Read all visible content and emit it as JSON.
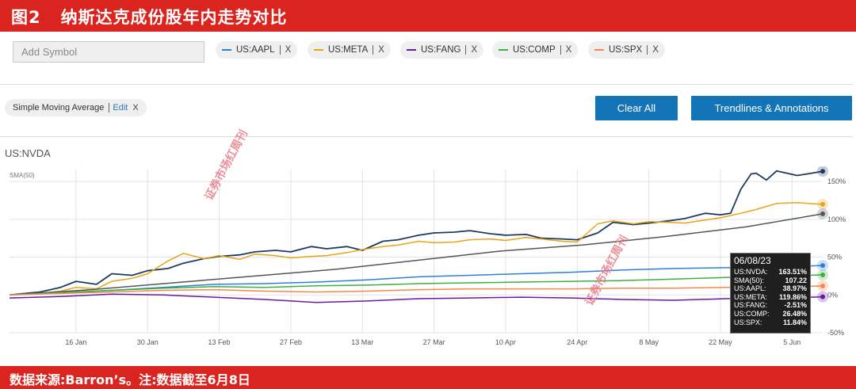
{
  "header": {
    "figure_no": "图2",
    "title": "纳斯达克成份股年内走势对比"
  },
  "footer": {
    "text": "数据来源:Barron’s。注:数据截至6月8日"
  },
  "toolbar": {
    "add_symbol_placeholder": "Add Symbol",
    "chips": [
      {
        "label": "US:AAPL",
        "color": "#2f7ed8",
        "close": "X"
      },
      {
        "label": "US:META",
        "color": "#e8a317",
        "close": "X"
      },
      {
        "label": "US:FANG",
        "color": "#6a1aa0",
        "close": "X"
      },
      {
        "label": "US:COMP",
        "color": "#3cb043",
        "close": "X"
      },
      {
        "label": "US:SPX",
        "color": "#f3894a",
        "close": "X"
      }
    ],
    "indicator": {
      "label": "Simple Moving Average",
      "edit": "Edit",
      "close": "X"
    },
    "clear_all": "Clear All",
    "trendlines": "Trendlines & Annotations"
  },
  "symbol_title": "US:NVDA",
  "watermark": "证券市场红周刊",
  "tooltip": {
    "date": "06/08/23",
    "rows": [
      {
        "name": "US:NVDA:",
        "value": "163.51%"
      },
      {
        "name": "SMA(50):",
        "value": "107.22"
      },
      {
        "name": "US:AAPL:",
        "value": "38.97%"
      },
      {
        "name": "US:META:",
        "value": "119.86%"
      },
      {
        "name": "US:FANG:",
        "value": "-2.51%"
      },
      {
        "name": "US:COMP:",
        "value": "26.48%"
      },
      {
        "name": "US:SPX:",
        "value": "11.84%"
      }
    ]
  },
  "chart_data": {
    "type": "line",
    "title": "",
    "ylabel": "",
    "y_unit": "%",
    "sma_label": "SMA(50)",
    "ylim": [
      -50,
      170
    ],
    "y_ticks": [
      150,
      100,
      50,
      0,
      -50
    ],
    "y_tick_labels": [
      "150%",
      "100%",
      "50%",
      "0%",
      "-50%"
    ],
    "x_tick_labels": [
      "16 Jan",
      "30 Jan",
      "13 Feb",
      "27 Feb",
      "13 Mar",
      "27 Mar",
      "10 Apr",
      "24 Apr",
      "8 May",
      "22 May",
      "5 Jun"
    ],
    "x_tick_days": [
      13,
      27,
      41,
      55,
      69,
      83,
      97,
      111,
      125,
      139,
      153
    ],
    "x_range_days": [
      0,
      159
    ],
    "grid": true,
    "series": [
      {
        "name": "US:NVDA",
        "color": "#1f3a5f",
        "x": [
          0,
          6,
          10,
          13,
          17,
          20,
          24,
          27,
          31,
          34,
          38,
          41,
          45,
          48,
          52,
          55,
          59,
          62,
          66,
          69,
          73,
          76,
          80,
          83,
          87,
          90,
          94,
          97,
          101,
          104,
          108,
          111,
          115,
          118,
          122,
          125,
          129,
          132,
          136,
          139,
          141,
          143,
          145,
          146,
          148,
          150,
          152,
          154,
          156,
          159
        ],
        "values": [
          0,
          4,
          10,
          18,
          14,
          28,
          26,
          32,
          35,
          42,
          48,
          51,
          53,
          57,
          59,
          57,
          64,
          61,
          64,
          59,
          71,
          73,
          79,
          82,
          83,
          85,
          81,
          79,
          80,
          75,
          74,
          73,
          82,
          96,
          93,
          95,
          98,
          101,
          108,
          106,
          108,
          140,
          160,
          161,
          152,
          164,
          161,
          158,
          160,
          163.51
        ]
      },
      {
        "name": "US:META",
        "color": "#e8a317",
        "x": [
          0,
          6,
          10,
          13,
          17,
          20,
          24,
          27,
          31,
          34,
          38,
          41,
          45,
          48,
          52,
          55,
          59,
          62,
          66,
          69,
          73,
          76,
          80,
          83,
          87,
          90,
          94,
          97,
          101,
          104,
          108,
          111,
          115,
          118,
          122,
          125,
          129,
          132,
          136,
          139,
          143,
          146,
          150,
          154,
          159
        ],
        "values": [
          0,
          2,
          5,
          10,
          8,
          18,
          22,
          28,
          45,
          55,
          48,
          52,
          47,
          54,
          52,
          49,
          51,
          52,
          56,
          60,
          64,
          66,
          71,
          69,
          70,
          73,
          74,
          72,
          76,
          74,
          71,
          70,
          94,
          98,
          94,
          97,
          96,
          95,
          99,
          102,
          108,
          113,
          121,
          122,
          119.86
        ]
      },
      {
        "name": "SMA(50)",
        "color": "#555555",
        "x": [
          0,
          16,
          32,
          48,
          64,
          80,
          96,
          112,
          128,
          144,
          159
        ],
        "values": [
          0,
          7,
          16,
          25,
          34,
          46,
          58,
          66,
          77,
          90,
          107.22
        ]
      },
      {
        "name": "US:AAPL",
        "color": "#2f7ed8",
        "x": [
          0,
          10,
          20,
          30,
          40,
          50,
          60,
          70,
          80,
          90,
          100,
          110,
          120,
          130,
          140,
          150,
          159
        ],
        "values": [
          0,
          3,
          6,
          10,
          14,
          15,
          17,
          20,
          24,
          26,
          28,
          30,
          33,
          35,
          36,
          37,
          38.97
        ]
      },
      {
        "name": "US:COMP",
        "color": "#3cb043",
        "x": [
          0,
          10,
          20,
          30,
          40,
          50,
          60,
          70,
          80,
          90,
          100,
          110,
          120,
          130,
          140,
          150,
          159
        ],
        "values": [
          0,
          3,
          6,
          9,
          11,
          10,
          12,
          13,
          15,
          16,
          17,
          18,
          19,
          21,
          23,
          25,
          26.48
        ]
      },
      {
        "name": "US:SPX",
        "color": "#f3894a",
        "x": [
          0,
          10,
          20,
          30,
          40,
          50,
          60,
          70,
          80,
          90,
          100,
          110,
          120,
          130,
          140,
          150,
          159
        ],
        "values": [
          0,
          2,
          4,
          6,
          7,
          5,
          4,
          5,
          7,
          8,
          8,
          8,
          9,
          9,
          10,
          11,
          11.84
        ]
      },
      {
        "name": "US:FANG",
        "color": "#6a1aa0",
        "x": [
          0,
          10,
          20,
          30,
          40,
          50,
          60,
          70,
          80,
          90,
          100,
          110,
          120,
          130,
          140,
          150,
          159
        ],
        "values": [
          -4,
          -2,
          1,
          0,
          -3,
          -6,
          -10,
          -8,
          -5,
          -4,
          -3,
          -4,
          -6,
          -7,
          -5,
          -4,
          -2.51
        ]
      }
    ]
  }
}
